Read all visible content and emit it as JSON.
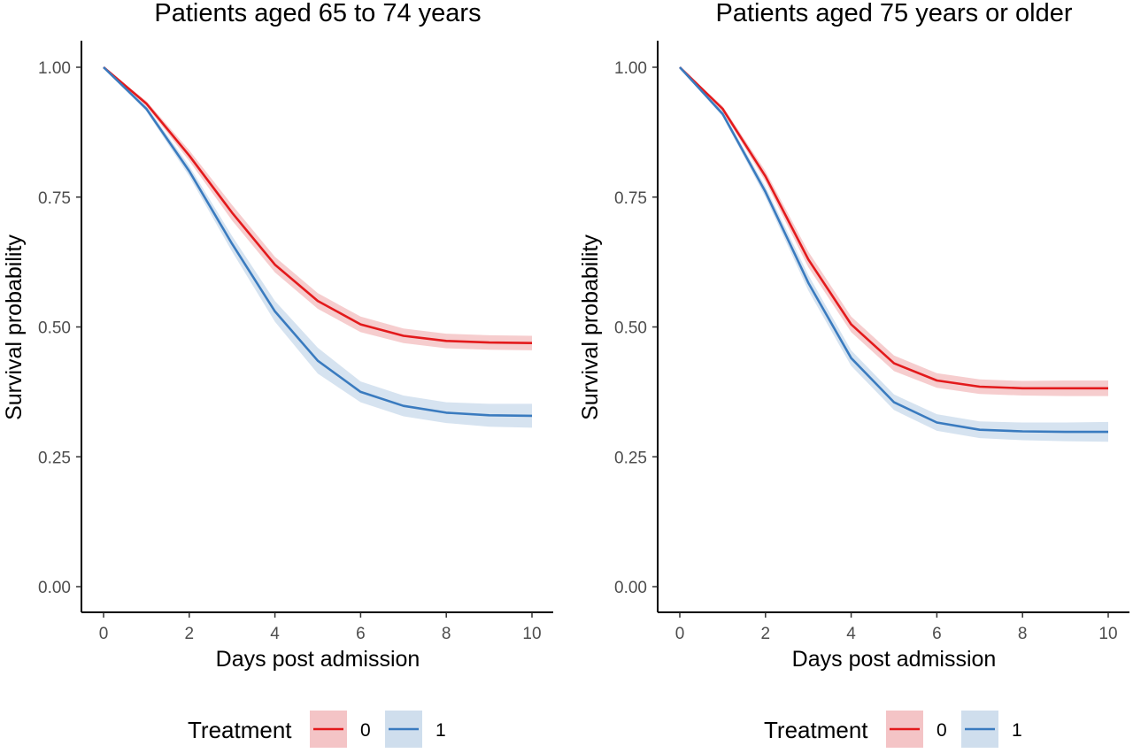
{
  "figure": {
    "legend_title": "Treatment"
  },
  "colors": {
    "treatment_0_line": "#e31a1c",
    "treatment_0_band": "#f4c4c6",
    "treatment_1_line": "#3a7bbf",
    "treatment_1_band": "#cfdeed",
    "axis": "#000000",
    "tick_label": "#4d4d4d"
  },
  "chart_data": [
    {
      "type": "line",
      "title": "Patients aged 65 to 74 years",
      "xlabel": "Days post admission",
      "ylabel": "Survival probability",
      "xlim": [
        0,
        10
      ],
      "ylim": [
        0,
        1
      ],
      "x_ticks": [
        "0",
        "2",
        "4",
        "6",
        "8",
        "10"
      ],
      "y_ticks": [
        "0.00",
        "0.25",
        "0.50",
        "0.75",
        "1.00"
      ],
      "grid": false,
      "legend_position": "bottom",
      "x": [
        0,
        1,
        2,
        3,
        4,
        5,
        6,
        7,
        8,
        9,
        10
      ],
      "series": [
        {
          "name": "0",
          "values": [
            1.0,
            0.93,
            0.83,
            0.72,
            0.62,
            0.55,
            0.505,
            0.483,
            0.473,
            0.47,
            0.469
          ],
          "lower": [
            1.0,
            0.925,
            0.82,
            0.705,
            0.605,
            0.535,
            0.49,
            0.469,
            0.459,
            0.456,
            0.455
          ],
          "upper": [
            1.0,
            0.935,
            0.84,
            0.735,
            0.635,
            0.565,
            0.52,
            0.497,
            0.487,
            0.484,
            0.483
          ]
        },
        {
          "name": "1",
          "values": [
            1.0,
            0.92,
            0.8,
            0.66,
            0.53,
            0.435,
            0.375,
            0.348,
            0.335,
            0.33,
            0.329
          ],
          "lower": [
            1.0,
            0.915,
            0.79,
            0.645,
            0.51,
            0.41,
            0.355,
            0.328,
            0.315,
            0.308,
            0.306
          ],
          "upper": [
            1.0,
            0.925,
            0.81,
            0.675,
            0.55,
            0.46,
            0.395,
            0.368,
            0.355,
            0.352,
            0.352
          ]
        }
      ]
    },
    {
      "type": "line",
      "title": "Patients aged 75 years or older",
      "xlabel": "Days post admission",
      "ylabel": "Survival probability",
      "xlim": [
        0,
        10
      ],
      "ylim": [
        0,
        1
      ],
      "x_ticks": [
        "0",
        "2",
        "4",
        "6",
        "8",
        "10"
      ],
      "y_ticks": [
        "0.00",
        "0.25",
        "0.50",
        "0.75",
        "1.00"
      ],
      "grid": false,
      "legend_position": "bottom",
      "x": [
        0,
        1,
        2,
        3,
        4,
        5,
        6,
        7,
        8,
        9,
        10
      ],
      "series": [
        {
          "name": "0",
          "values": [
            1.0,
            0.92,
            0.79,
            0.63,
            0.505,
            0.43,
            0.397,
            0.385,
            0.382,
            0.382,
            0.382
          ],
          "lower": [
            1.0,
            0.915,
            0.78,
            0.615,
            0.49,
            0.415,
            0.383,
            0.371,
            0.368,
            0.367,
            0.367
          ],
          "upper": [
            1.0,
            0.925,
            0.8,
            0.645,
            0.52,
            0.445,
            0.411,
            0.399,
            0.396,
            0.397,
            0.397
          ]
        },
        {
          "name": "1",
          "values": [
            1.0,
            0.91,
            0.76,
            0.585,
            0.44,
            0.355,
            0.316,
            0.302,
            0.299,
            0.298,
            0.298
          ],
          "lower": [
            1.0,
            0.905,
            0.75,
            0.57,
            0.425,
            0.34,
            0.3,
            0.286,
            0.282,
            0.28,
            0.279
          ],
          "upper": [
            1.0,
            0.915,
            0.77,
            0.6,
            0.455,
            0.37,
            0.332,
            0.318,
            0.316,
            0.316,
            0.317
          ]
        }
      ]
    }
  ]
}
